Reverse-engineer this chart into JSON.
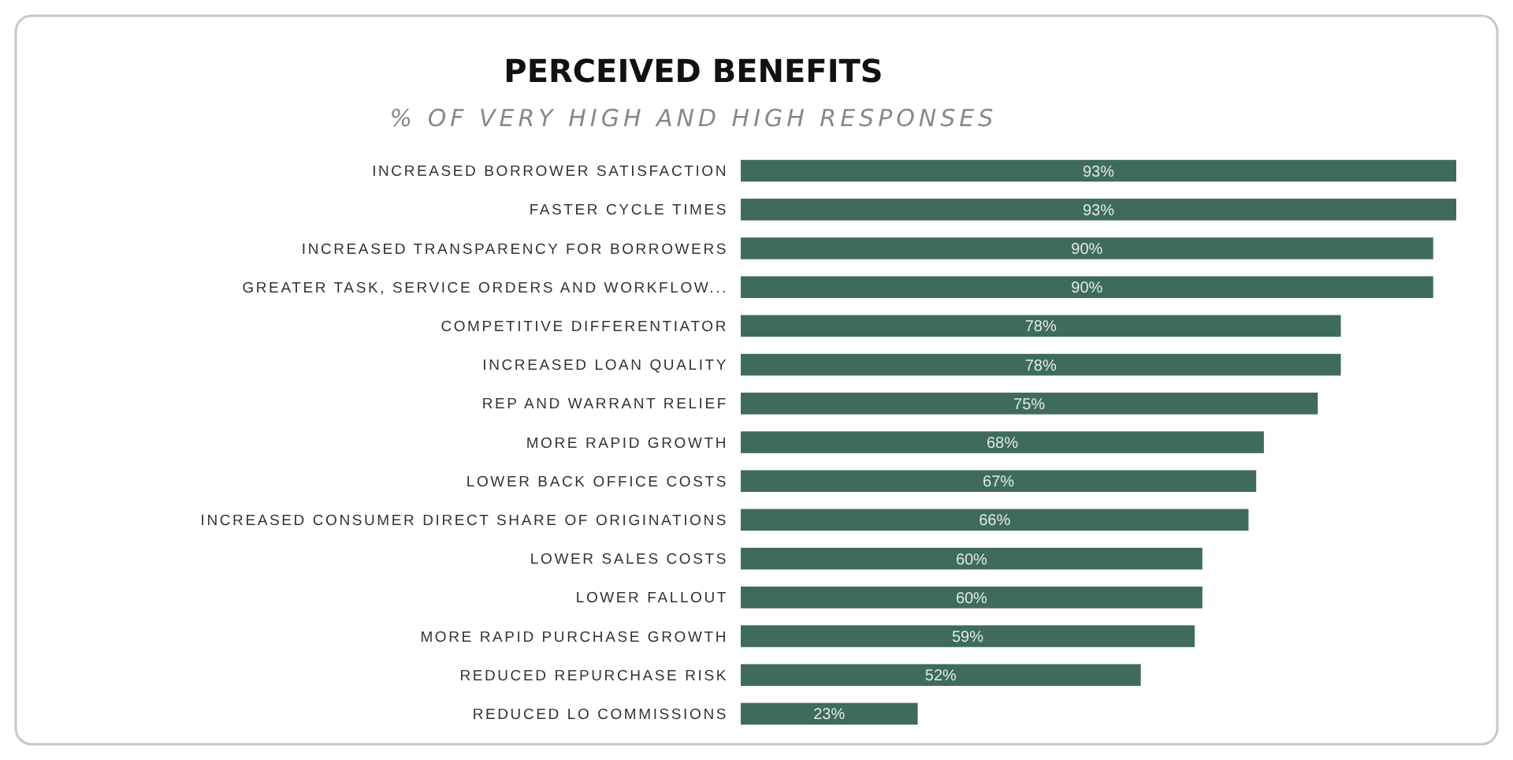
{
  "chart_data": {
    "type": "bar",
    "orientation": "horizontal",
    "title": "PERCEIVED  BENEFITS",
    "subtitle": "% OF VERY HIGH AND HIGH RESPONSES",
    "categories": [
      "INCREASED BORROWER SATISFACTION",
      "FASTER CYCLE TIMES",
      "INCREASED TRANSPARENCY FOR BORROWERS",
      "GREATER TASK, SERVICE ORDERS AND WORKFLOW...",
      "COMPETITIVE DIFFERENTIATOR",
      "INCREASED LOAN QUALITY",
      "REP AND WARRANT RELIEF",
      "MORE RAPID GROWTH",
      "LOWER BACK OFFICE COSTS",
      "INCREASED CONSUMER DIRECT SHARE OF ORIGINATIONS",
      "LOWER SALES COSTS",
      "LOWER FALLOUT",
      "MORE RAPID PURCHASE GROWTH",
      "REDUCED REPURCHASE RISK",
      "REDUCED LO COMMISSIONS"
    ],
    "values": [
      93,
      93,
      90,
      90,
      78,
      78,
      75,
      68,
      67,
      66,
      60,
      60,
      59,
      52,
      23
    ],
    "value_labels": [
      "93%",
      "93%",
      "90%",
      "90%",
      "78%",
      "78%",
      "75%",
      "68%",
      "67%",
      "66%",
      "60%",
      "60%",
      "59%",
      "52%",
      "23%"
    ],
    "color": "#3f6b5e"
  }
}
